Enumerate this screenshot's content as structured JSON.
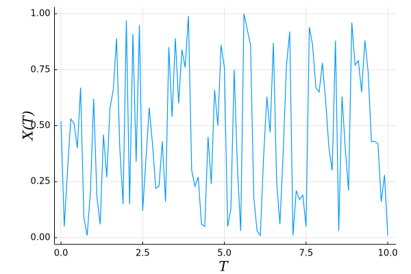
{
  "chart_data": {
    "type": "line",
    "x_label": "T",
    "y_label": "X(T)",
    "x": [
      0,
      0.1,
      0.2,
      0.3,
      0.4,
      0.5,
      0.6,
      0.7,
      0.8,
      0.9,
      1,
      1.1,
      1.2,
      1.3,
      1.4,
      1.5,
      1.6,
      1.7,
      1.8,
      1.9,
      2,
      2.1,
      2.2,
      2.3,
      2.4,
      2.5,
      2.6,
      2.7,
      2.8,
      2.9,
      3,
      3.1,
      3.2,
      3.3,
      3.4,
      3.5,
      3.6,
      3.7,
      3.8,
      3.9,
      4,
      4.1,
      4.2,
      4.3,
      4.4,
      4.5,
      4.6,
      4.7,
      4.8,
      4.9,
      5,
      5.1,
      5.2,
      5.3,
      5.4,
      5.5,
      5.6,
      5.7,
      5.8,
      5.9,
      6,
      6.1,
      6.2,
      6.3,
      6.4,
      6.5,
      6.6,
      6.7,
      6.8,
      6.9,
      7,
      7.1,
      7.2,
      7.3,
      7.4,
      7.5,
      7.6,
      7.7,
      7.8,
      7.9,
      8,
      8.1,
      8.2,
      8.3,
      8.4,
      8.5,
      8.6,
      8.7,
      8.8,
      8.9,
      9,
      9.1,
      9.2,
      9.3,
      9.4,
      9.5,
      9.6,
      9.7,
      9.8,
      9.9,
      10
    ],
    "series": [
      {
        "color": "#009af9",
        "values": [
          0.52,
          0.05,
          0.3,
          0.53,
          0.51,
          0.4,
          0.67,
          0.09,
          0.01,
          0.2,
          0.62,
          0.18,
          0.06,
          0.46,
          0.27,
          0.58,
          0.66,
          0.89,
          0.4,
          0.15,
          0.97,
          0.15,
          0.91,
          0.34,
          0.95,
          0.12,
          0.35,
          0.58,
          0.42,
          0.22,
          0.23,
          0.43,
          0.16,
          0.85,
          0.54,
          0.89,
          0.6,
          0.84,
          0.76,
          0.99,
          0.3,
          0.23,
          0.27,
          0.06,
          0.05,
          0.45,
          0.24,
          0.66,
          0.5,
          0.86,
          0.76,
          0.05,
          0.13,
          0.75,
          0.31,
          0.03,
          1.0,
          0.93,
          0.86,
          0.18,
          0.03,
          0.01,
          0.36,
          0.63,
          0.47,
          0.87,
          0.25,
          0.06,
          0.38,
          0.77,
          0.92,
          0.01,
          0.21,
          0.17,
          0.19,
          0.05,
          0.94,
          0.86,
          0.67,
          0.65,
          0.78,
          0.61,
          0.4,
          0.3,
          0.88,
          0.03,
          0.63,
          0.4,
          0.21,
          0.96,
          0.77,
          0.79,
          0.65,
          0.88,
          0.74,
          0.43,
          0.43,
          0.42,
          0.16,
          0.28,
          0.01
        ]
      }
    ],
    "xlim": [
      -0.2,
      10.25
    ],
    "ylim": [
      -0.03,
      1.03
    ],
    "xticks": [
      {
        "value": 0,
        "label": "0.0"
      },
      2.5,
      {
        "value": 5,
        "label": "5.0"
      },
      7.5,
      {
        "value": 10,
        "label": "10.0"
      }
    ],
    "yticks": [
      {
        "value": 0,
        "label": "0.00"
      },
      {
        "value": 0.25,
        "label": "0.25"
      },
      {
        "value": 0.5,
        "label": "0.50"
      },
      {
        "value": 0.75,
        "label": "0.75"
      },
      {
        "value": 1,
        "label": "1.00"
      }
    ],
    "grid": true
  }
}
